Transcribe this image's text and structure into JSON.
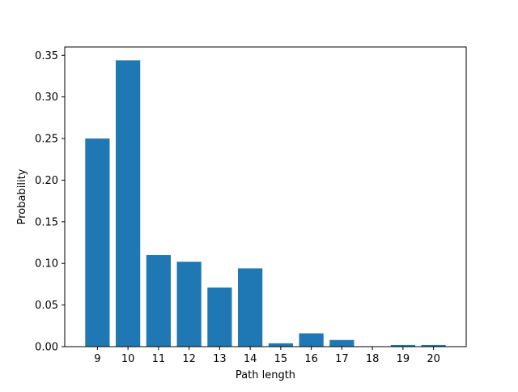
{
  "chart_data": {
    "type": "bar",
    "title": "",
    "xlabel": "Path length",
    "ylabel": "Probability",
    "categories": [
      "9",
      "10",
      "11",
      "12",
      "13",
      "14",
      "15",
      "16",
      "17",
      "18",
      "19",
      "20"
    ],
    "values": [
      0.25,
      0.344,
      0.11,
      0.102,
      0.071,
      0.094,
      0.004,
      0.016,
      0.008,
      0.0,
      0.002,
      0.002
    ],
    "ylim": [
      0,
      0.36
    ],
    "yticks": [
      0.0,
      0.05,
      0.1,
      0.15,
      0.2,
      0.25,
      0.3,
      0.35
    ],
    "ytick_labels": [
      "0.00",
      "0.05",
      "0.10",
      "0.15",
      "0.20",
      "0.25",
      "0.30",
      "0.35"
    ],
    "grid": false,
    "bar_color": "#1f77b4"
  }
}
